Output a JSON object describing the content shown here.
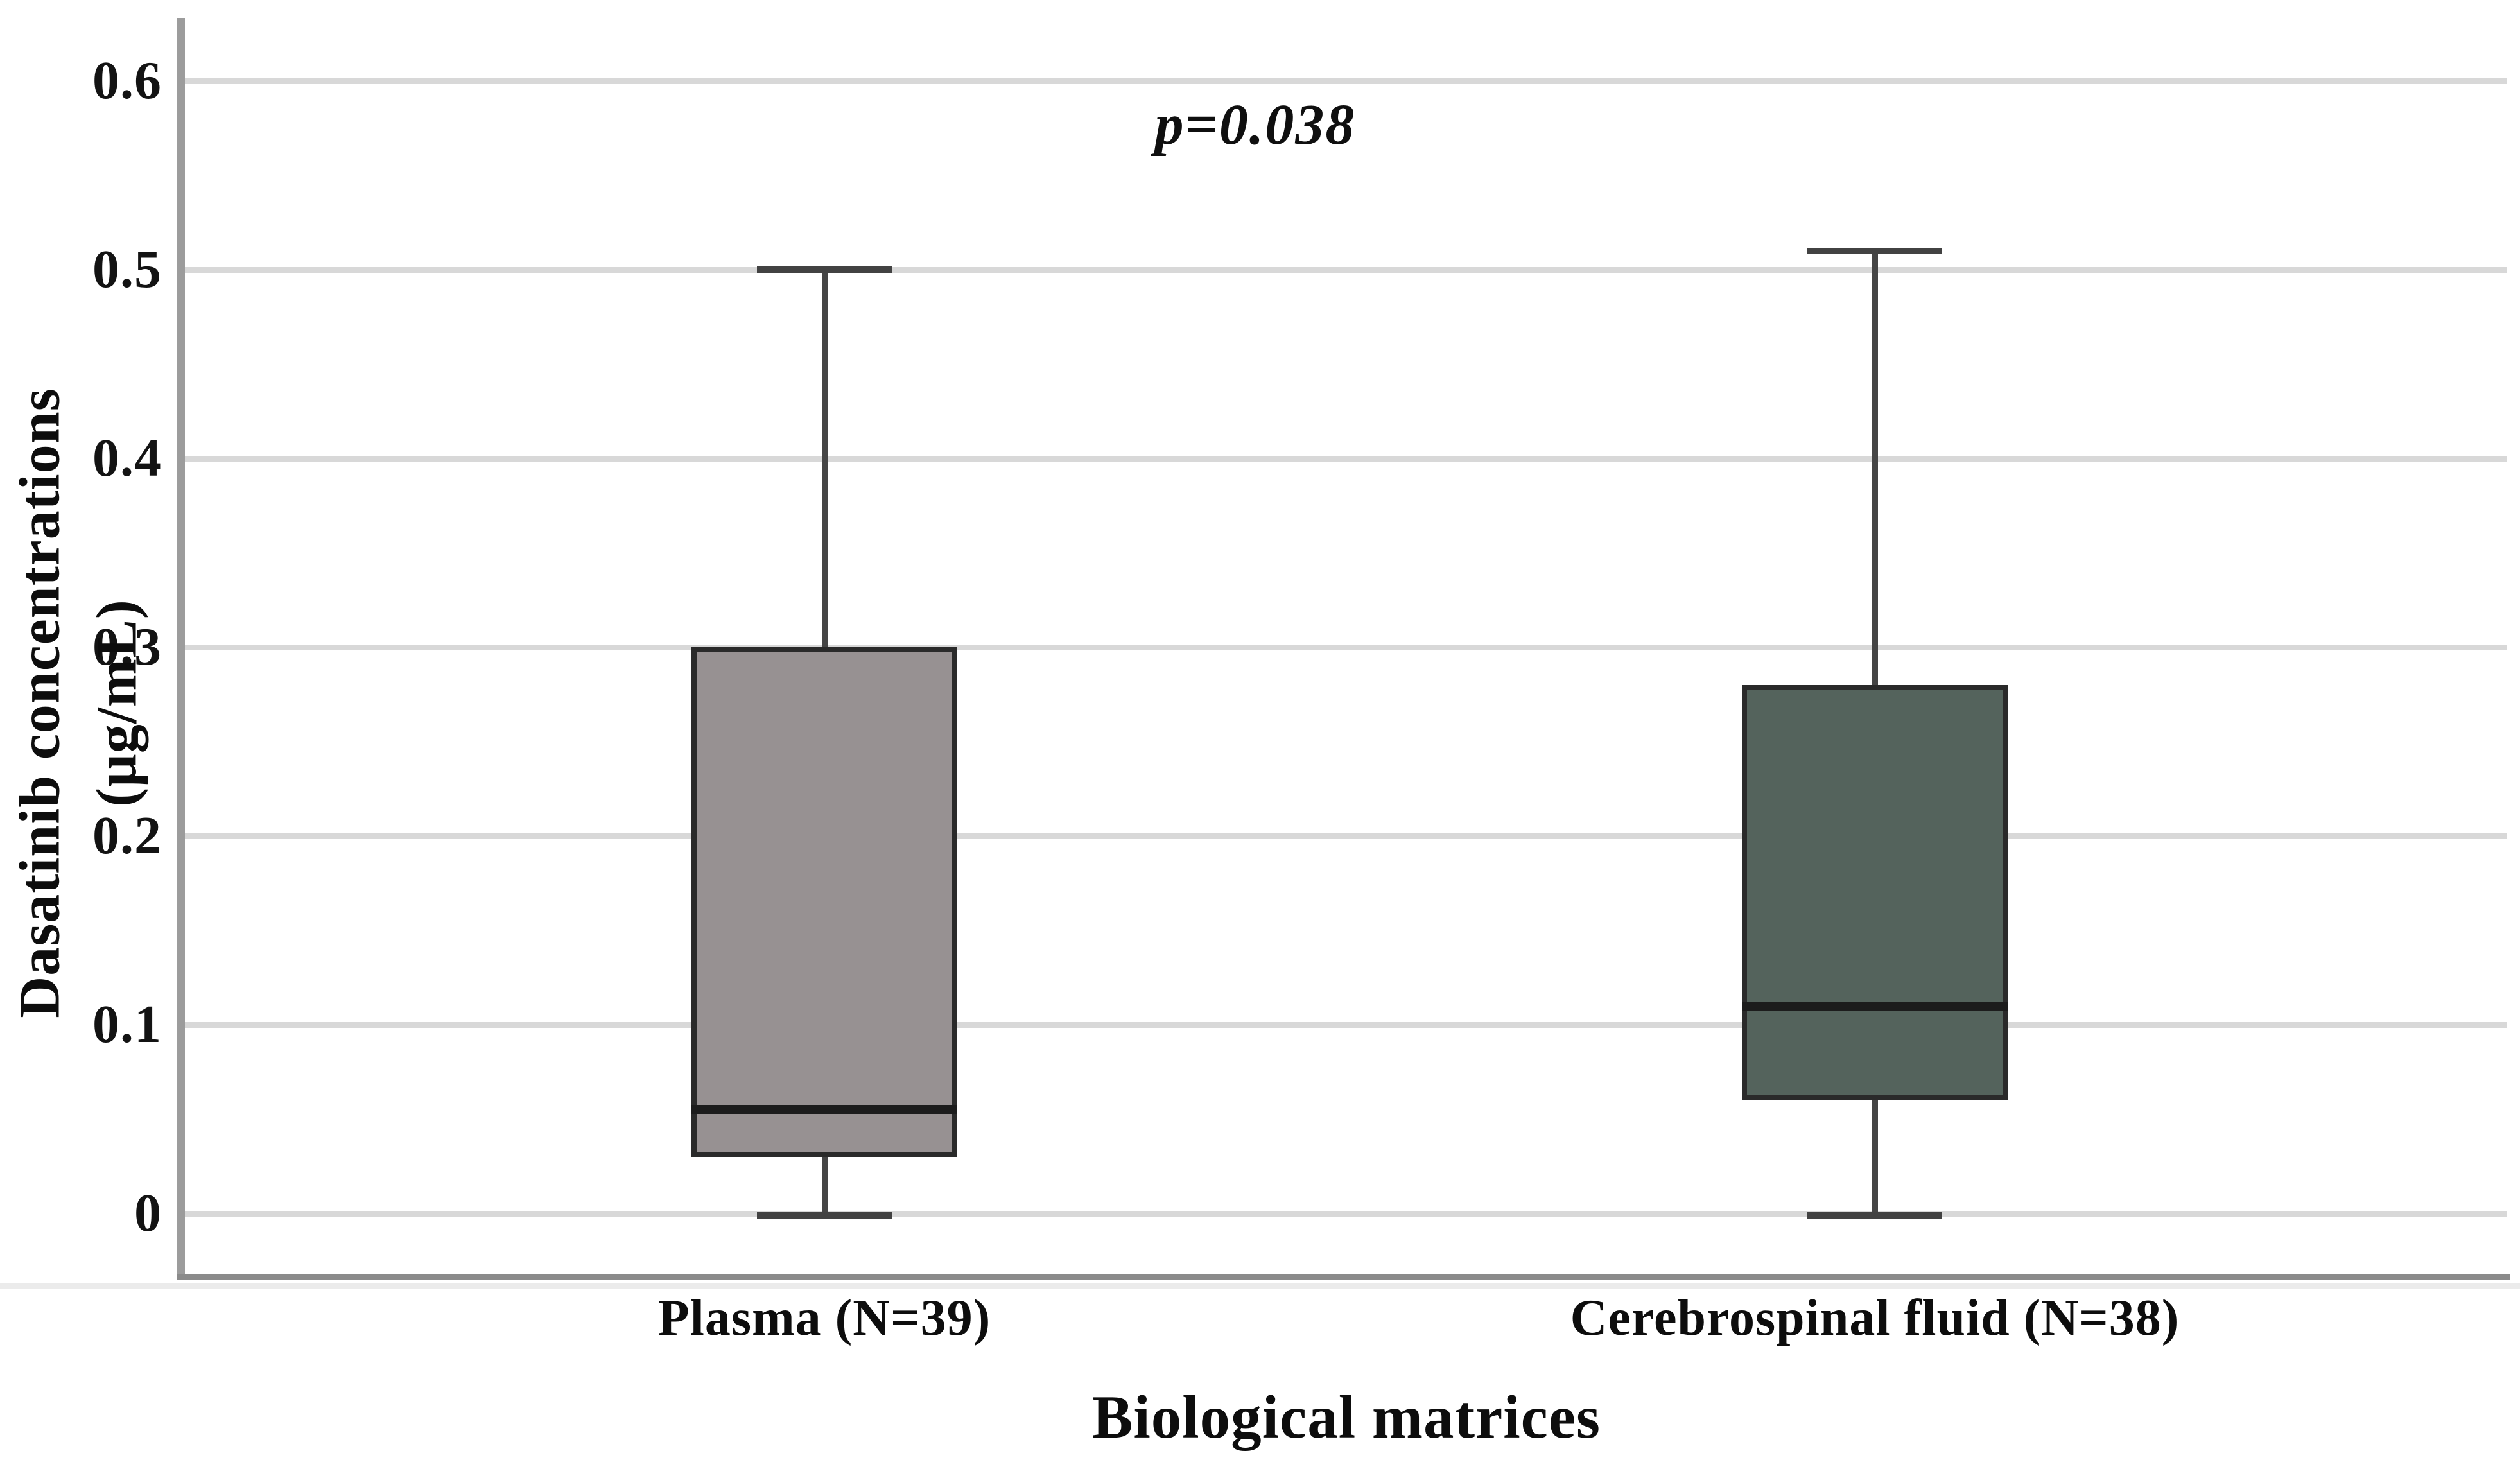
{
  "chart_data": {
    "type": "boxplot",
    "title": "",
    "xlabel": "Biological matrices",
    "ylabel": "Dasatinib concentrations (µg/mL)",
    "annotation": "p=0.038",
    "ylim": [
      -0.033,
      0.633
    ],
    "ytick_values": [
      0,
      0.1,
      0.2,
      0.3,
      0.4,
      0.5,
      0.6
    ],
    "ytick_labels": [
      "0",
      "0.1",
      "0.2",
      "0.3",
      "0.4",
      "0.5",
      "0.6"
    ],
    "grid": "horizontal",
    "gridline_color": "#d8d8d8",
    "series": [
      {
        "label": "Plasma (N=39)",
        "box_color": "#979192",
        "whisker_low": 0,
        "q1": 0.03,
        "median": 0.055,
        "q3": 0.3,
        "whisker_high": 0.5
      },
      {
        "label": "Cerebrospinal fluid (N=38)",
        "box_color": "#54635C",
        "whisker_low": 0,
        "q1": 0.06,
        "median": 0.11,
        "q3": 0.28,
        "whisker_high": 0.51
      }
    ]
  }
}
